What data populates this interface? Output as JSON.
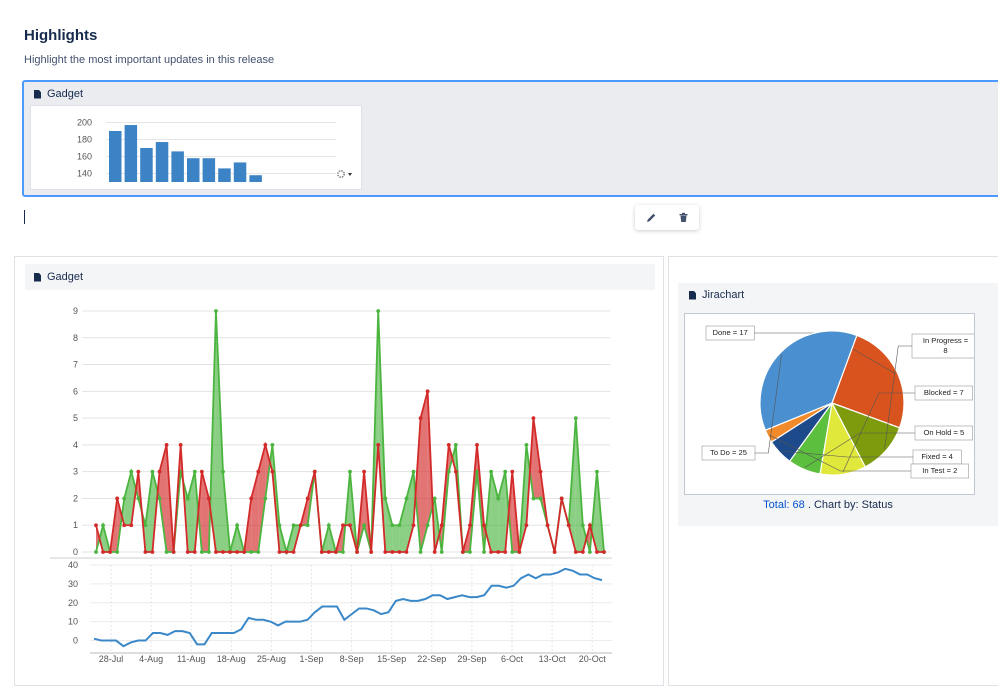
{
  "page": {
    "title": "Highlights",
    "subtitle": "Highlight the most important updates in this release"
  },
  "gadget_top": {
    "title": "Gadget"
  },
  "gadget_main": {
    "title": "Gadget"
  },
  "jirachart": {
    "title": "Jirachart",
    "total_label": "Total:",
    "total_value": "68",
    "chart_by": ". Chart by: Status"
  },
  "toolbar": {
    "edit_icon": "pencil-icon",
    "delete_icon": "trash-icon"
  },
  "colors": {
    "accent": "#4c9aff",
    "bar": "#3b83c4",
    "green": "#4cb540",
    "red": "#d32a2a",
    "line": "#3b88c8"
  },
  "chart_data": [
    {
      "type": "bar",
      "yticks": [
        140,
        160,
        180,
        200
      ],
      "ylim": [
        130,
        210
      ],
      "values": [
        190,
        197,
        170,
        177,
        166,
        158,
        158,
        146,
        153,
        138
      ],
      "settings_icon": "gear-icon"
    },
    {
      "type": "area",
      "yticks": [
        0,
        1,
        2,
        3,
        4,
        5,
        6,
        7,
        8,
        9
      ],
      "ylim": [
        0,
        9
      ],
      "series": [
        {
          "color": "green",
          "values": [
            0,
            1,
            0,
            0,
            2,
            3,
            2,
            1,
            3,
            2,
            0,
            0,
            3,
            2,
            3,
            0,
            0,
            9,
            3,
            0,
            1,
            0,
            0,
            0,
            2,
            4,
            1,
            0,
            1,
            1,
            1,
            3,
            0,
            1,
            0,
            0,
            3,
            0,
            1,
            0,
            9,
            2,
            1,
            1,
            2,
            3,
            0,
            1,
            2,
            0,
            3,
            4,
            0,
            0,
            3,
            0,
            3,
            2,
            3,
            0,
            0,
            4,
            2,
            2,
            1,
            0,
            2,
            1,
            5,
            1,
            0,
            3,
            0
          ]
        },
        {
          "color": "red",
          "values": [
            1,
            0,
            0,
            2,
            1,
            1,
            3,
            0,
            0,
            3,
            4,
            0,
            4,
            0,
            0,
            3,
            2,
            0,
            0,
            0,
            0,
            0,
            2,
            3,
            4,
            3,
            0,
            0,
            0,
            1,
            2,
            3,
            0,
            0,
            0,
            1,
            1,
            0,
            3,
            0,
            4,
            0,
            0,
            0,
            0,
            1,
            5,
            6,
            0,
            1,
            4,
            3,
            0,
            1,
            4,
            1,
            0,
            0,
            0,
            3,
            0,
            1,
            5,
            3,
            1,
            0,
            2,
            1,
            0,
            0,
            1,
            0,
            0
          ]
        }
      ]
    },
    {
      "type": "line",
      "x_ticks": [
        "28-Jul",
        "4-Aug",
        "11-Aug",
        "18-Aug",
        "25-Aug",
        "1-Sep",
        "8-Sep",
        "15-Sep",
        "22-Sep",
        "29-Sep",
        "6-Oct",
        "13-Oct",
        "20-Oct"
      ],
      "yticks": [
        0,
        10,
        20,
        30,
        40
      ],
      "ylim": [
        -5,
        40
      ],
      "values": [
        1,
        0,
        0,
        0,
        -3,
        -1,
        0,
        0,
        4,
        4,
        3,
        5,
        5,
        4,
        -2,
        -2,
        4,
        4,
        4,
        4,
        6,
        12,
        11,
        11,
        10,
        8,
        10,
        10,
        10,
        11,
        15,
        18,
        18,
        18,
        11,
        14,
        17,
        17,
        16,
        14,
        15,
        21,
        22,
        21,
        21,
        22,
        24,
        24,
        22,
        23,
        24,
        23,
        23,
        24,
        29,
        29,
        28,
        29,
        33,
        35,
        33,
        35,
        35,
        36,
        38,
        37,
        35,
        35,
        33,
        32
      ]
    },
    {
      "type": "pie",
      "slices": [
        {
          "label": "Done = 17",
          "value": 17,
          "color": "#d9531e"
        },
        {
          "label": "In Progress = 8",
          "value": 8,
          "color": "#7d9b0d"
        },
        {
          "label": "Blocked = 7",
          "value": 7,
          "color": "#dfe83b"
        },
        {
          "label": "On Hold = 5",
          "value": 5,
          "color": "#5cbf3e"
        },
        {
          "label": "Fixed = 4",
          "value": 4,
          "color": "#1d4a8a"
        },
        {
          "label": "In Test = 2",
          "value": 2,
          "color": "#f18a2b"
        },
        {
          "label": "To Do = 25",
          "value": 25,
          "color": "#4a8fd0"
        }
      ]
    }
  ]
}
